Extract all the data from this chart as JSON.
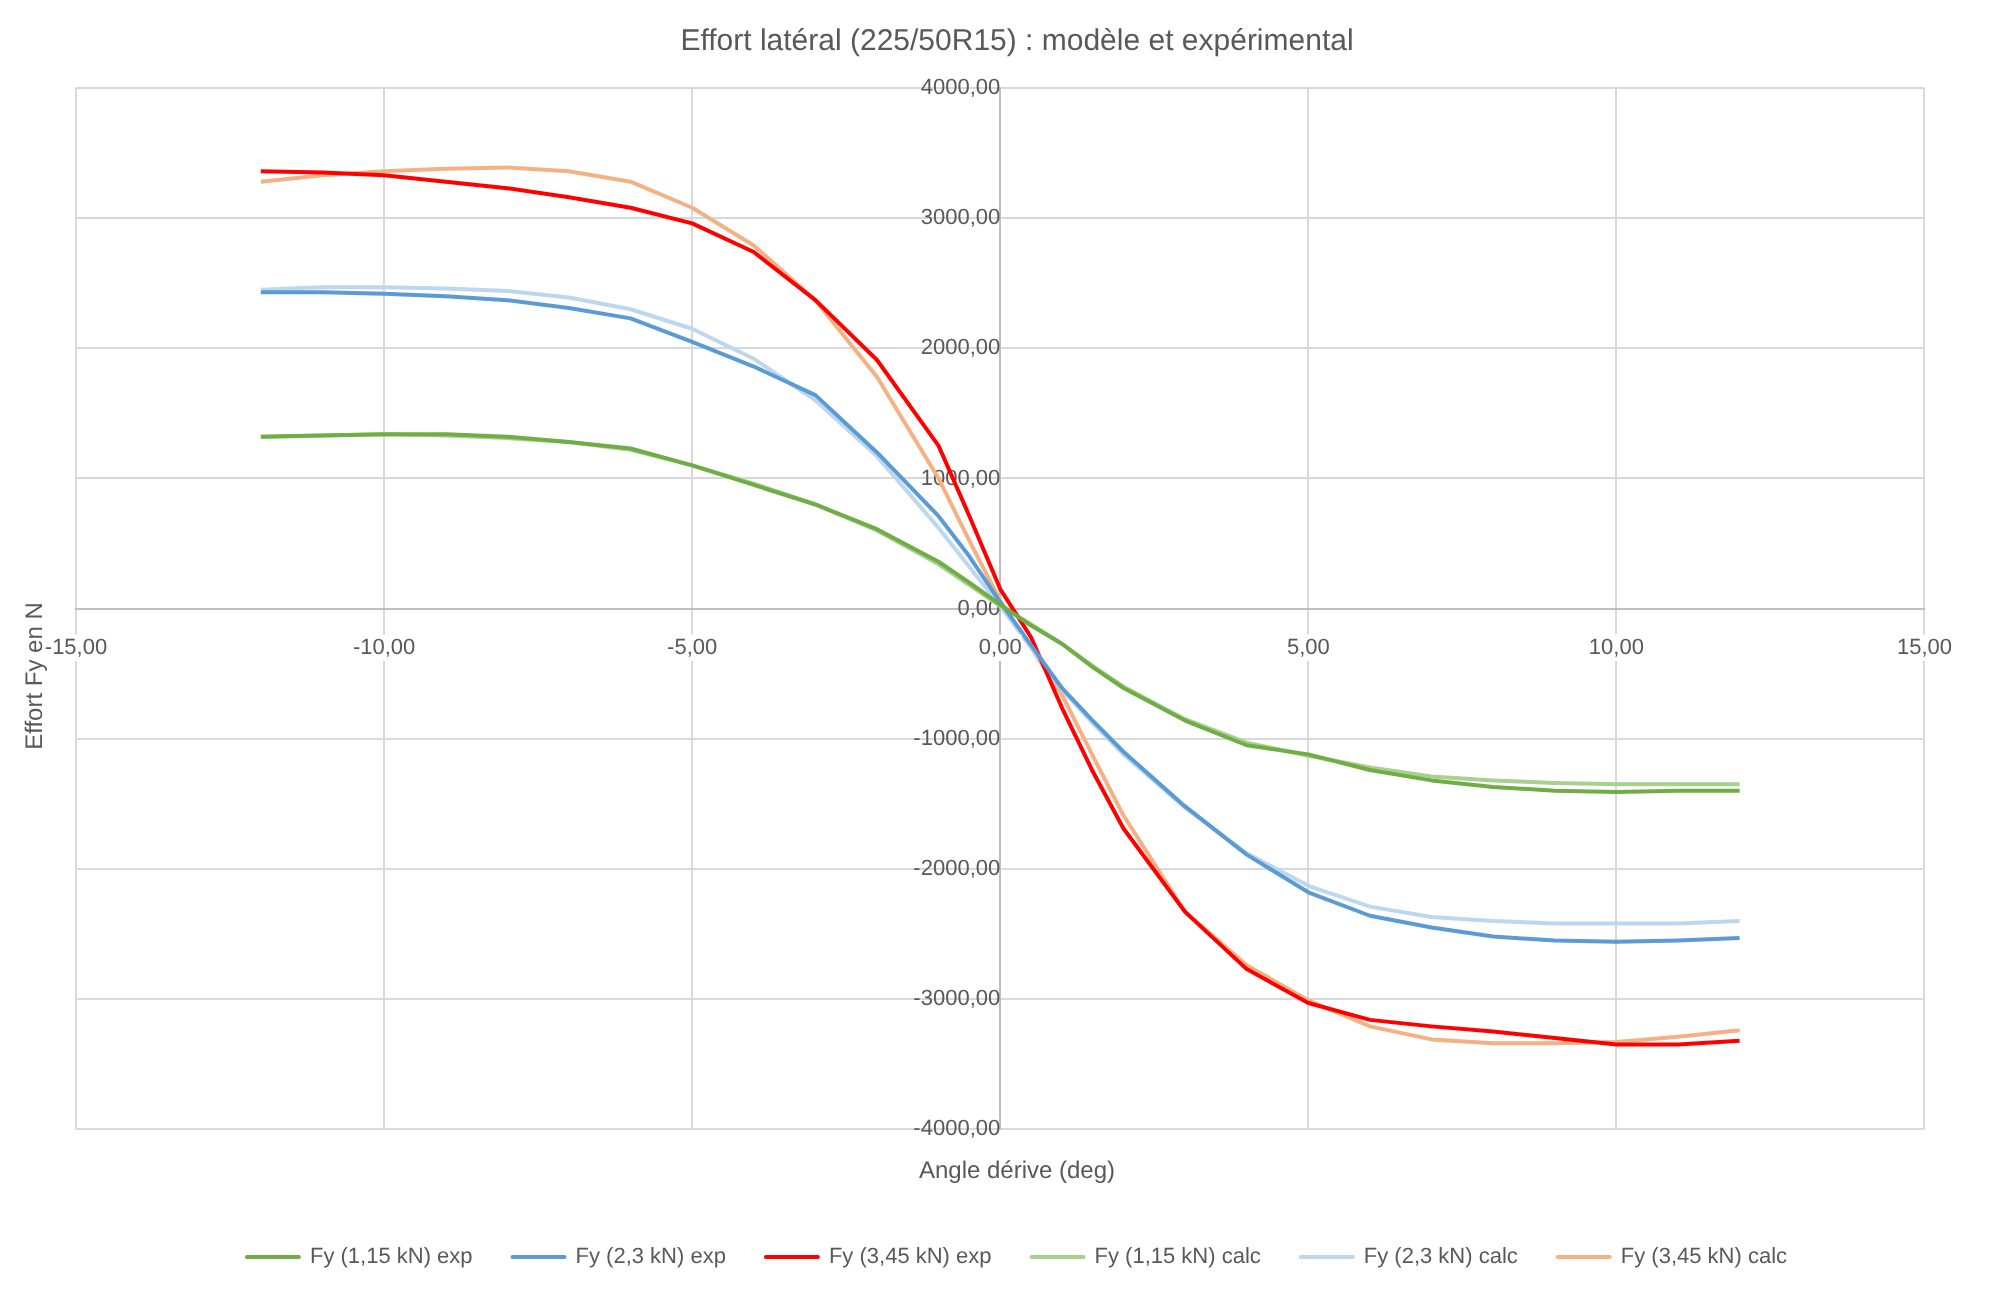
{
  "chart_data": {
    "type": "line",
    "title": "Effort latéral (225/50R15) : modèle et expérimental",
    "xlabel": "Angle dérive (deg)",
    "ylabel": "Effort Fy en N",
    "x": [
      -12,
      -11,
      -10,
      -9,
      -8,
      -7,
      -6,
      -5,
      -4,
      -3,
      -2,
      -1,
      -0.5,
      0,
      0.5,
      1,
      1.5,
      2,
      3,
      4,
      5,
      6,
      7,
      8,
      9,
      10,
      11,
      12
    ],
    "series": [
      {
        "name": "Fy (1,15 kN) exp",
        "color": "#70ad47",
        "values": [
          1320,
          1330,
          1340,
          1340,
          1320,
          1280,
          1230,
          1100,
          950,
          800,
          610,
          360,
          200,
          30,
          -130,
          -270,
          -450,
          -610,
          -860,
          -1050,
          -1120,
          -1240,
          -1320,
          -1370,
          -1400,
          -1410,
          -1400,
          -1400
        ]
      },
      {
        "name": "Fy (2,3 kN) exp",
        "color": "#5b9bd5",
        "values": [
          2430,
          2430,
          2420,
          2400,
          2370,
          2310,
          2230,
          2050,
          1860,
          1640,
          1200,
          710,
          400,
          50,
          -280,
          -610,
          -860,
          -1100,
          -1520,
          -1890,
          -2180,
          -2360,
          -2450,
          -2520,
          -2550,
          -2560,
          -2550,
          -2530
        ]
      },
      {
        "name": "Fy (3,45 kN) exp",
        "color": "#ff0000",
        "values": [
          3360,
          3350,
          3330,
          3280,
          3230,
          3160,
          3080,
          2960,
          2740,
          2370,
          1910,
          1250,
          710,
          150,
          -220,
          -760,
          -1250,
          -1690,
          -2330,
          -2770,
          -3030,
          -3160,
          -3210,
          -3250,
          -3300,
          -3350,
          -3350,
          -3320
        ]
      },
      {
        "name": "Fy (1,15 kN) calc",
        "color": "#a9d18e",
        "values": [
          1320,
          1330,
          1340,
          1330,
          1310,
          1280,
          1220,
          1100,
          960,
          800,
          600,
          340,
          180,
          20,
          -120,
          -270,
          -440,
          -600,
          -850,
          -1030,
          -1130,
          -1220,
          -1290,
          -1320,
          -1340,
          -1350,
          -1350,
          -1350
        ]
      },
      {
        "name": "Fy (2,3 kN) calc",
        "color": "#bdd7ee",
        "values": [
          2450,
          2470,
          2470,
          2460,
          2440,
          2390,
          2300,
          2150,
          1920,
          1600,
          1170,
          620,
          320,
          20,
          -300,
          -620,
          -880,
          -1120,
          -1530,
          -1880,
          -2130,
          -2290,
          -2370,
          -2400,
          -2420,
          -2420,
          -2420,
          -2400
        ]
      },
      {
        "name": "Fy (3,45 kN) calc",
        "color": "#f4b183",
        "values": [
          3280,
          3330,
          3360,
          3380,
          3390,
          3360,
          3280,
          3080,
          2790,
          2370,
          1780,
          1000,
          520,
          60,
          -300,
          -660,
          -1130,
          -1590,
          -2330,
          -2740,
          -3010,
          -3210,
          -3310,
          -3340,
          -3340,
          -3330,
          -3290,
          -3240
        ]
      }
    ],
    "xlim": [
      -15,
      15
    ],
    "xticks": [
      {
        "value": -15,
        "label": "-15,00"
      },
      {
        "value": -10,
        "label": "-10,00"
      },
      {
        "value": -5,
        "label": "-5,00"
      },
      {
        "value": 0,
        "label": "0,00"
      },
      {
        "value": 5,
        "label": "5,00"
      },
      {
        "value": 10,
        "label": "10,00"
      },
      {
        "value": 15,
        "label": "15,00"
      }
    ],
    "ylim": [
      -4000,
      4000
    ],
    "yticks": [
      {
        "value": -4000,
        "label": "-4000,00"
      },
      {
        "value": -3000,
        "label": "-3000,00"
      },
      {
        "value": -2000,
        "label": "-2000,00"
      },
      {
        "value": -1000,
        "label": "-1000,00"
      },
      {
        "value": 0,
        "label": "0,00"
      },
      {
        "value": 1000,
        "label": "1000,00"
      },
      {
        "value": 2000,
        "label": "2000,00"
      },
      {
        "value": 3000,
        "label": "3000,00"
      },
      {
        "value": 4000,
        "label": "4000,00"
      }
    ],
    "grid": true,
    "legend": "bottom",
    "marker": "none",
    "line_style": "solid"
  }
}
